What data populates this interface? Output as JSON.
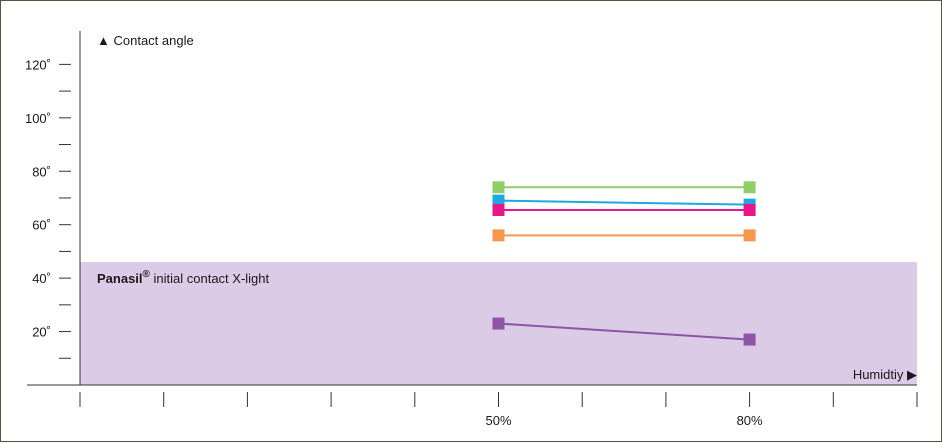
{
  "chart_data": {
    "type": "line",
    "y_axis_title": "▲ Contact angle",
    "x_axis_title": "Humidtiy ▶",
    "y_tick_labels": [
      "20˚",
      "40˚",
      "60˚",
      "80˚",
      "100˚",
      "120˚"
    ],
    "y_tick_values": [
      20,
      40,
      60,
      80,
      100,
      120
    ],
    "ylim": [
      0,
      128
    ],
    "x_categories": [
      "50%",
      "80%"
    ],
    "x_tick_count": 11,
    "x_category_tick_index": [
      5,
      8
    ],
    "shaded_band": {
      "y_range": [
        0,
        46
      ],
      "label_bold": "Panasil",
      "label_sup": "®",
      "label_rest": " initial contact X-light",
      "color": "#dccbe6"
    },
    "grid": false,
    "series": [
      {
        "color": "#8fcf6a",
        "values": [
          74,
          74
        ]
      },
      {
        "color": "#1ea8e0",
        "values": [
          69,
          67.5
        ]
      },
      {
        "color": "#e8178a",
        "values": [
          65.5,
          65.5
        ]
      },
      {
        "color": "#f7964f",
        "values": [
          56,
          56
        ]
      },
      {
        "color": "#8e55a7",
        "values": [
          23,
          17
        ]
      }
    ]
  }
}
